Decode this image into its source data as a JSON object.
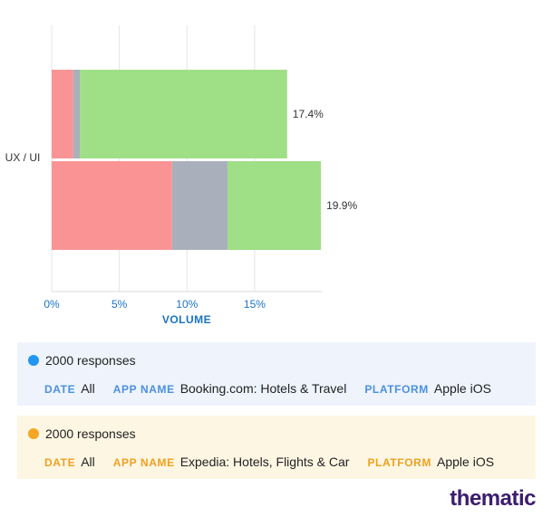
{
  "chart_data": {
    "type": "bar",
    "orientation": "horizontal",
    "stacked": true,
    "categories": [
      "UX / UI"
    ],
    "xlabel": "VOLUME",
    "xticks": [
      "0%",
      "5%",
      "10%",
      "15%"
    ],
    "xlim": [
      0,
      20
    ],
    "grid": true,
    "bars": [
      {
        "dataset": "Booking.com: Hotels & Travel",
        "segments": [
          {
            "sentiment": "negative",
            "value": 1.6,
            "color": "#fa9494"
          },
          {
            "sentiment": "neutral",
            "value": 0.5,
            "color": "#a9b0bb"
          },
          {
            "sentiment": "positive",
            "value": 15.3,
            "color": "#9fdf86"
          }
        ],
        "total_label": "17.4%"
      },
      {
        "dataset": "Expedia: Hotels, Flights & Car",
        "segments": [
          {
            "sentiment": "negative",
            "value": 8.9,
            "color": "#fa9494"
          },
          {
            "sentiment": "neutral",
            "value": 4.1,
            "color": "#a9b0bb"
          },
          {
            "sentiment": "positive",
            "value": 6.9,
            "color": "#9fdf86"
          }
        ],
        "total_label": "19.9%"
      }
    ]
  },
  "datasets": [
    {
      "responses": "2000 responses",
      "color": "#2196f3",
      "date_key": "DATE",
      "date_value": "All",
      "app_key": "APP NAME",
      "app_value": "Booking.com: Hotels & Travel",
      "platform_key": "PLATFORM",
      "platform_value": "Apple iOS"
    },
    {
      "responses": "2000 responses",
      "color": "#f5a623",
      "date_key": "DATE",
      "date_value": "All",
      "app_key": "APP NAME",
      "app_value": "Expedia: Hotels, Flights & Car",
      "platform_key": "PLATFORM",
      "platform_value": "Apple iOS"
    }
  ],
  "brand": {
    "logo_text": "thematic"
  }
}
